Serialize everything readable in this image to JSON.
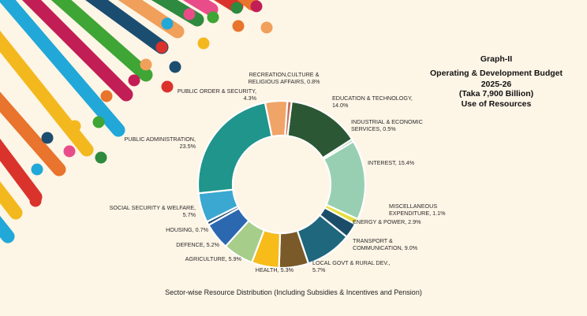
{
  "colors": {
    "background": "#fdf5e6",
    "stripes": [
      "#d9332c",
      "#e8742d",
      "#f4b81f",
      "#21a8d8",
      "#c21e56",
      "#3fa535",
      "#1b4d70",
      "#f0a05a",
      "#2d8a3e",
      "#e84d8a"
    ]
  },
  "chart_data": {
    "type": "pie",
    "donut": true,
    "title": [
      "Graph-II",
      "Operating & Development Budget",
      "2025-26",
      "(Taka 7,900 Billion)",
      "Use of Resources"
    ],
    "caption": "Sector-wise Resource Distribution (Including Subsidies & Incentives and Pension)",
    "slices": [
      {
        "label": [
          "EDUCATION  & TECHNOLOGY,",
          "14.0%"
        ],
        "value": 14.0,
        "color": "#2b5735"
      },
      {
        "label": [
          "INDUSTRIAL & ECONOMIC",
          "SERVICES, 0.5%"
        ],
        "value": 0.5,
        "color": "#9fc9a8"
      },
      {
        "label": [
          "INTEREST, 15.4%"
        ],
        "value": 15.4,
        "color": "#98cfb2"
      },
      {
        "label": [
          "MISCELLANEOUS",
          "EXPENDITURE, 1.1%"
        ],
        "value": 1.1,
        "color": "#e7df3c"
      },
      {
        "label": [
          "ENERGY & POWER, 2.9%"
        ],
        "value": 2.9,
        "color": "#1b4d68"
      },
      {
        "label": [
          "TRANSPORT  &",
          "COMMUNICATION, 9.0%"
        ],
        "value": 9.0,
        "color": "#1e677d"
      },
      {
        "label": [
          "LOCAL GOVT & RURAL DEV.,",
          "5.7%"
        ],
        "value": 5.7,
        "color": "#7a5a28"
      },
      {
        "label": [
          "HEALTH, 5.3%"
        ],
        "value": 5.3,
        "color": "#f7bb1a"
      },
      {
        "label": [
          "AGRICULTURE, 5.9%"
        ],
        "value": 5.9,
        "color": "#a7cd8a"
      },
      {
        "label": [
          "DEFENCE, 5.2%"
        ],
        "value": 5.2,
        "color": "#2b68b0"
      },
      {
        "label": [
          "HOUSING, 0.7%"
        ],
        "value": 0.7,
        "color": "#1f4a6e"
      },
      {
        "label": [
          "SOCIAL SECURITY & WELFARE,",
          "5.7%"
        ],
        "value": 5.7,
        "color": "#3aa8d0"
      },
      {
        "label": [
          "PUBLIC ADMINISTRATION,",
          "23.5%"
        ],
        "value": 23.5,
        "color": "#1f958c"
      },
      {
        "label": [
          "PUBLIC ORDER & SECURITY,",
          "4.3%"
        ],
        "value": 4.3,
        "color": "#f0a468"
      },
      {
        "label": [
          "RECREATION,CULTURE &",
          "RELIGIOUS AFFAIRS, 0.8%"
        ],
        "value": 0.8,
        "color": "#c6705a"
      }
    ]
  }
}
